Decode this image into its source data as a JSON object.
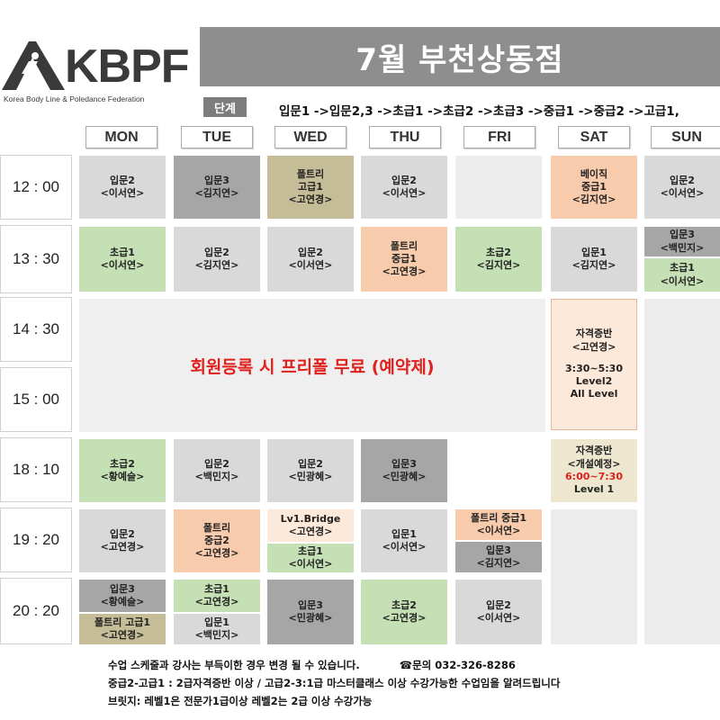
{
  "logo": {
    "text": "KBPF",
    "subtitle": "Korea Body Line & Poledance Federation"
  },
  "header": {
    "title": "7월 부천상동점"
  },
  "levels": {
    "tag": "단계",
    "path": "입문1 ->입문2,3 ->초급1 ->초급2 ->초급3 ->중급1 ->중급2 ->고급1,"
  },
  "days": [
    "MON",
    "TUE",
    "WED",
    "THU",
    "FRI",
    "SAT",
    "SUN"
  ],
  "times": [
    "12 : 00",
    "13 : 30",
    "14 : 30",
    "15 : 00",
    "18 : 10",
    "19 : 20",
    "20 : 20"
  ],
  "colors": {
    "grey": "#d9d9d9",
    "dark_grey": "#a6a6a6",
    "tan": "#c4bd97",
    "orange": "#f8cbad",
    "green": "#c5e0b4",
    "notice_red": "#e0201c"
  },
  "notice": "회원등록 시 프리폴 무료 (예약제)",
  "classes": {
    "r1200": {
      "mon": [
        "입문2",
        "<이서연>"
      ],
      "tue": [
        "입문3",
        "<김지연>"
      ],
      "wed": [
        "폴트리",
        "고급1",
        "<고연경>"
      ],
      "thu": [
        "입문2",
        "<이서연>"
      ],
      "sat": [
        "베이직",
        "중급1",
        "<김지연>"
      ],
      "sun": [
        "입문2",
        "<이서연>"
      ]
    },
    "r1330": {
      "mon": [
        "초급1",
        "<이서연>"
      ],
      "tue": [
        "입문2",
        "<김지연>"
      ],
      "wed": [
        "입문2",
        "<이서연>"
      ],
      "thu": [
        "폴트리",
        "중급1",
        "<고연경>"
      ],
      "fri": [
        "초급2",
        "<김지연>"
      ],
      "sat": [
        "입문1",
        "<김지연>"
      ],
      "sun_a": [
        "입문3",
        "<백민지>"
      ],
      "sun_b": [
        "초급1",
        "<이서연>"
      ]
    },
    "sat_special": [
      "자격증반",
      "<고연경>",
      "",
      "3:30~5:30",
      "Level2",
      "All Level"
    ],
    "r1810": {
      "mon": [
        "초급2",
        "<황예슬>"
      ],
      "tue": [
        "입문2",
        "<백민지>"
      ],
      "wed": [
        "입문2",
        "<민광혜>"
      ],
      "thu": [
        "입문3",
        "<민광혜>"
      ],
      "sat": [
        "자격증반",
        "<개설예정>",
        "6:00~7:30",
        "Level 1"
      ]
    },
    "r1920": {
      "mon": [
        "입문2",
        "<고연경>"
      ],
      "tue": [
        "폴트리",
        "중급2",
        "<고연경>"
      ],
      "wed_a": [
        "Lv1.Bridge",
        "<고연경>"
      ],
      "wed_b": [
        "초급1",
        "<이서연>"
      ],
      "thu": [
        "입문1",
        "<이서연>"
      ],
      "fri_a": [
        "폴트리 중급1",
        "<이서연>"
      ],
      "fri_b": [
        "입문3",
        "<김지연>"
      ]
    },
    "r2020": {
      "mon_a": [
        "입문3",
        "<황예슬>"
      ],
      "mon_b": [
        "폴트리 고급1",
        "<고연경>"
      ],
      "tue_a": [
        "초급1",
        "<고연경>"
      ],
      "tue_b": [
        "입문1",
        "<백민지>"
      ],
      "wed": [
        "입문3",
        "<민광혜>"
      ],
      "thu": [
        "초급2",
        "<고연경>"
      ],
      "fri": [
        "입문2",
        "<이서연>"
      ]
    }
  },
  "footer": {
    "line1": "수업 스케줄과 강사는 부득이한 경우 변경 될 수 있습니다.",
    "phone": "☎문의 032-326-8286",
    "line2": "중급2-고급1 : 2급자격증반 이상 / 고급2-3:1급 마스터클래스 이상 수강가능한 수업임을 알려드립니다",
    "line3": "브릿지: 레벨1은 전문가1급이상 레벨2는 2급 이상 수강가능"
  }
}
